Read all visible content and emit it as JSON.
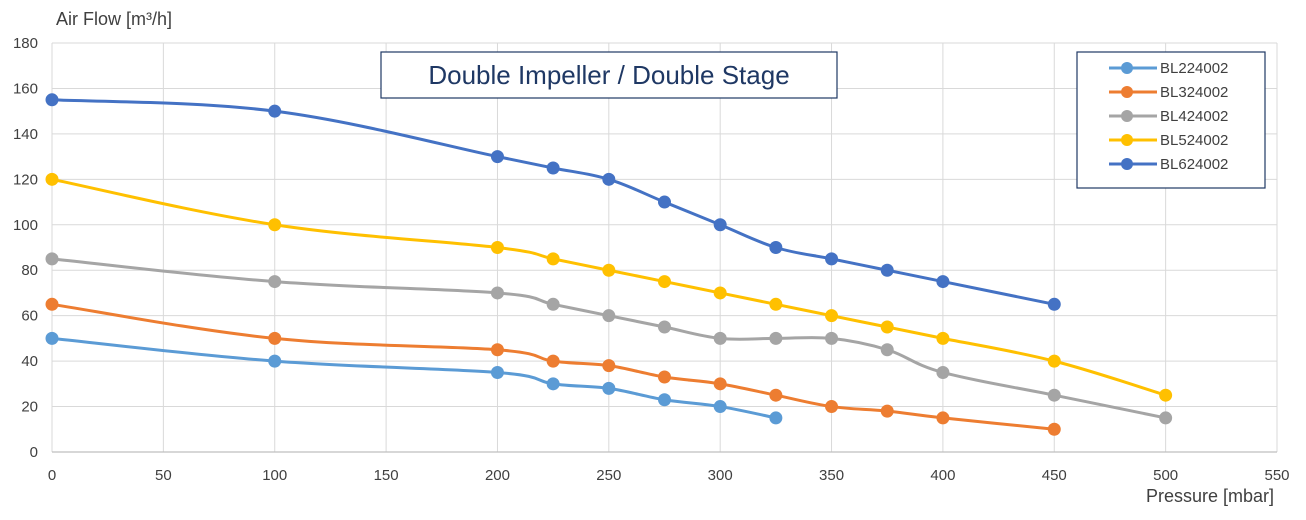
{
  "chart_data": {
    "type": "line",
    "title": "Double Impeller / Double Stage",
    "ylabel": "Air Flow  [m³/h]",
    "xlabel": "Pressure  [mbar]",
    "xlim": [
      0,
      550
    ],
    "ylim": [
      0,
      180
    ],
    "xticks": [
      0,
      50,
      100,
      150,
      200,
      250,
      300,
      350,
      400,
      450,
      500,
      550
    ],
    "yticks": [
      0,
      20,
      40,
      60,
      80,
      100,
      120,
      140,
      160,
      180
    ],
    "grid": true,
    "legend_position": "top-right",
    "series": [
      {
        "name": "BL224002",
        "color": "#5b9bd5",
        "points": [
          [
            0,
            50
          ],
          [
            100,
            40
          ],
          [
            200,
            35
          ],
          [
            225,
            30
          ],
          [
            250,
            28
          ],
          [
            275,
            23
          ],
          [
            300,
            20
          ],
          [
            325,
            15
          ]
        ]
      },
      {
        "name": "BL324002",
        "color": "#ed7d31",
        "points": [
          [
            0,
            65
          ],
          [
            100,
            50
          ],
          [
            200,
            45
          ],
          [
            225,
            40
          ],
          [
            250,
            38
          ],
          [
            275,
            33
          ],
          [
            300,
            30
          ],
          [
            325,
            25
          ],
          [
            350,
            20
          ],
          [
            375,
            18
          ],
          [
            400,
            15
          ],
          [
            450,
            10
          ]
        ]
      },
      {
        "name": "BL424002",
        "color": "#a5a5a5",
        "points": [
          [
            0,
            85
          ],
          [
            100,
            75
          ],
          [
            200,
            70
          ],
          [
            225,
            65
          ],
          [
            250,
            60
          ],
          [
            275,
            55
          ],
          [
            300,
            50
          ],
          [
            325,
            50
          ],
          [
            350,
            50
          ],
          [
            375,
            45
          ],
          [
            400,
            35
          ],
          [
            450,
            25
          ],
          [
            500,
            15
          ]
        ]
      },
      {
        "name": "BL524002",
        "color": "#ffc000",
        "points": [
          [
            0,
            120
          ],
          [
            100,
            100
          ],
          [
            200,
            90
          ],
          [
            225,
            85
          ],
          [
            250,
            80
          ],
          [
            275,
            75
          ],
          [
            300,
            70
          ],
          [
            325,
            65
          ],
          [
            350,
            60
          ],
          [
            375,
            55
          ],
          [
            400,
            50
          ],
          [
            450,
            40
          ],
          [
            500,
            25
          ]
        ]
      },
      {
        "name": "BL624002",
        "color": "#4472c4",
        "points": [
          [
            0,
            155
          ],
          [
            100,
            150
          ],
          [
            200,
            130
          ],
          [
            225,
            125
          ],
          [
            250,
            120
          ],
          [
            275,
            110
          ],
          [
            300,
            100
          ],
          [
            325,
            90
          ],
          [
            350,
            85
          ],
          [
            375,
            80
          ],
          [
            400,
            75
          ],
          [
            450,
            65
          ]
        ]
      }
    ]
  }
}
